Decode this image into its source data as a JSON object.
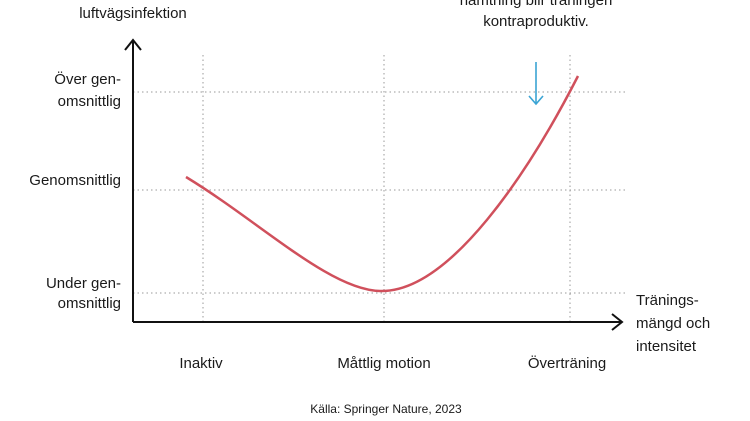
{
  "y_axis_title": "luftvägsinfektion",
  "annotation": [
    "hämtning blir träningen",
    "kontraproduktiv."
  ],
  "y_labels": [
    [
      "Över gen-",
      "omsnittlig"
    ],
    [
      "Genomsnittlig"
    ],
    [
      "Under gen-",
      "omsnittlig"
    ]
  ],
  "x_labels": [
    "Inaktiv",
    "Måttlig motion",
    "Överträning"
  ],
  "x_axis_title": [
    "Tränings-",
    "mängd och",
    "intensitet"
  ],
  "source": "Källa: Springer Nature, 2023"
}
